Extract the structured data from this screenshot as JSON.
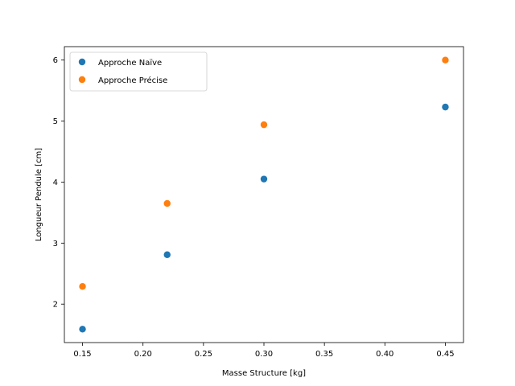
{
  "chart_data": {
    "type": "scatter",
    "title": "",
    "xlabel": "Masse Structure [kg]",
    "ylabel": "Longueur Pendule [cm]",
    "xlim": [
      0.135,
      0.465
    ],
    "ylim": [
      1.37,
      6.22
    ],
    "xticks": [
      0.15,
      0.2,
      0.25,
      0.3,
      0.35,
      0.4,
      0.45
    ],
    "xtick_labels": [
      "0.15",
      "0.20",
      "0.25",
      "0.30",
      "0.35",
      "0.40",
      "0.45"
    ],
    "yticks": [
      2,
      3,
      4,
      5,
      6
    ],
    "ytick_labels": [
      "2",
      "3",
      "4",
      "5",
      "6"
    ],
    "grid": false,
    "legend_position": "top-left",
    "series": [
      {
        "name": "Approche Naïve",
        "color": "#1f77b4",
        "x": [
          0.15,
          0.22,
          0.3,
          0.45
        ],
        "y": [
          1.59,
          2.81,
          4.05,
          5.23
        ]
      },
      {
        "name": "Approche Précise",
        "color": "#ff7f0e",
        "x": [
          0.15,
          0.22,
          0.3,
          0.45
        ],
        "y": [
          2.29,
          3.65,
          4.94,
          6.0
        ]
      }
    ]
  }
}
